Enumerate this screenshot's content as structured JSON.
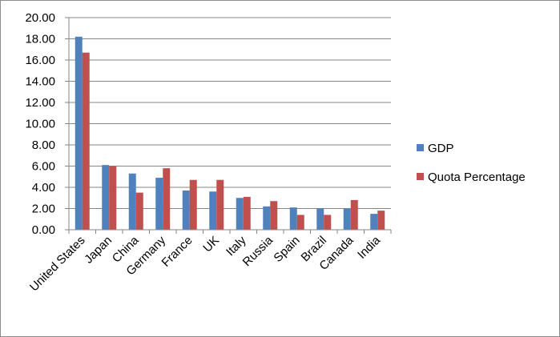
{
  "chart_data": {
    "type": "bar",
    "title": "",
    "xlabel": "",
    "ylabel": "",
    "ylim": [
      0,
      20
    ],
    "ytick_step": 2,
    "ytick_labels": [
      "0.00",
      "2.00",
      "4.00",
      "6.00",
      "8.00",
      "10.00",
      "12.00",
      "14.00",
      "16.00",
      "18.00",
      "20.00"
    ],
    "grid": "horizontal",
    "legend": "right",
    "categories": [
      "United States",
      "Japan",
      "China",
      "Germany",
      "France",
      "UK",
      "Italy",
      "Russia",
      "Spain",
      "Brazil",
      "Canada",
      "India"
    ],
    "series": [
      {
        "name": "GDP",
        "color": "#4f81bd",
        "values": [
          18.2,
          6.1,
          5.3,
          4.9,
          3.7,
          3.6,
          3.0,
          2.2,
          2.1,
          2.0,
          2.0,
          1.5
        ]
      },
      {
        "name": "Quota Percentage",
        "color": "#c0504d",
        "values": [
          16.7,
          6.0,
          3.5,
          5.8,
          4.7,
          4.7,
          3.1,
          2.7,
          1.4,
          1.4,
          2.8,
          1.8
        ]
      }
    ]
  }
}
